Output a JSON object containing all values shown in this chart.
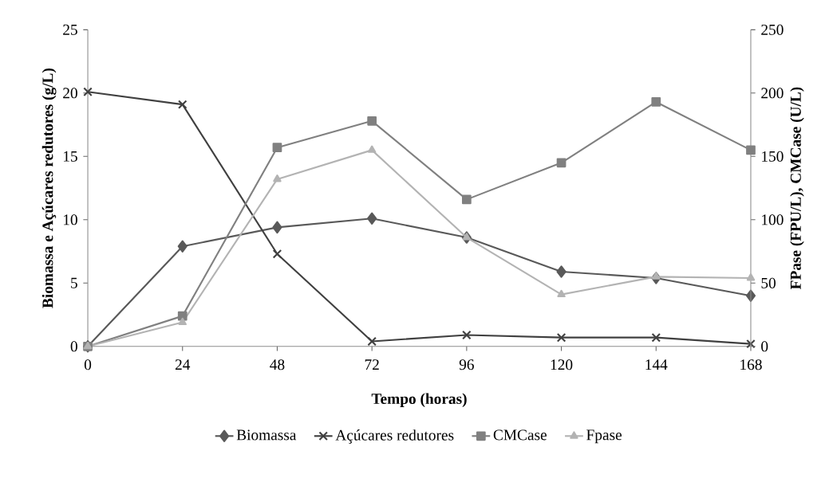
{
  "chart_data": {
    "type": "line",
    "xlabel": "Tempo (horas)",
    "ylabel": "Biomassa e Açúcares redutores (g/L)",
    "y2label": "FPase (FPU/L), CMCase (U/L)",
    "x": [
      0,
      24,
      48,
      72,
      96,
      120,
      144,
      168
    ],
    "xlim": [
      0,
      168
    ],
    "xticks": [
      0,
      24,
      48,
      72,
      96,
      120,
      144,
      168
    ],
    "ylim": [
      0,
      25
    ],
    "yticks": [
      0,
      5,
      10,
      15,
      20,
      25
    ],
    "y2lim": [
      0,
      250
    ],
    "y2ticks": [
      0,
      50,
      100,
      150,
      200,
      250
    ],
    "grid": false,
    "legend": "bottom",
    "line_style": "solid",
    "series": [
      {
        "name": "Biomassa",
        "color": "#595959",
        "marker": "diamond",
        "values": [
          0,
          7.9,
          9.4,
          10.1,
          8.6,
          5.9,
          5.4,
          4.0
        ]
      },
      {
        "name": "Açúcares redutores",
        "color": "#404040",
        "marker": "cross",
        "values": [
          20.1,
          19.1,
          7.3,
          0.4,
          0.9,
          0.7,
          0.7,
          0.2
        ]
      },
      {
        "name": "CMCase",
        "color": "#808080",
        "marker": "square",
        "axis": "y2",
        "values": [
          0,
          24,
          157,
          178,
          116,
          145,
          193,
          155
        ]
      },
      {
        "name": "Fpase",
        "color": "#b3b3b3",
        "marker": "triangle",
        "axis": "y2",
        "values": [
          0,
          19,
          132,
          155,
          86,
          41,
          55,
          54
        ]
      }
    ]
  }
}
